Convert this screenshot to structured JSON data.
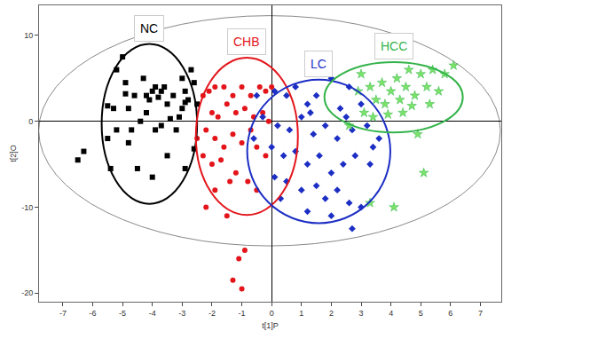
{
  "chart_data": {
    "type": "scatter",
    "x_label": "t[1]P",
    "y_label": "t[2]O",
    "xlim": [
      -7.8,
      7.7
    ],
    "ylim": [
      -21,
      13.5
    ],
    "xticks": [
      -7,
      -6,
      -5,
      -4,
      -3,
      -2,
      -1,
      0,
      1,
      2,
      3,
      4,
      5,
      6,
      7
    ],
    "yticks": [
      -20,
      -10,
      0,
      10
    ],
    "grid": false,
    "hotelling_ellipse": {
      "cx": -0.07,
      "cy": -1.1,
      "rx": 7.74,
      "ry": 13.4,
      "color": "#888888"
    },
    "series": [
      {
        "name": "NC",
        "color": "#000000",
        "marker": "square",
        "ellipse": {
          "cx": -4.1,
          "cy": -0.3,
          "rx": 1.6,
          "ry": 9.3
        },
        "x": [
          -6.3,
          -6.5,
          -5.5,
          -5.3,
          -5.2,
          -5.0,
          -4.9,
          -4.8,
          -4.7,
          -4.5,
          -4.3,
          -4.2,
          -4.1,
          -4.0,
          -3.9,
          -3.8,
          -3.7,
          -3.6,
          -3.5,
          -3.3,
          -3.2,
          -3.0,
          -2.9,
          -2.8,
          -2.7,
          -2.6,
          -2.5,
          -3.1,
          -4.4,
          -4.6,
          -5.4,
          -5.5,
          -4.0,
          -3.5,
          -2.9,
          -2.6,
          -3.9,
          -4.2,
          -4.9,
          -5.2,
          -3.4,
          -2.9,
          -3.7,
          -4.8,
          -3.0
        ],
        "y": [
          -3.5,
          -4.5,
          1.8,
          1.5,
          6,
          7.5,
          3.2,
          1.5,
          -1,
          -5.5,
          5,
          3,
          2.5,
          3.5,
          4,
          2.8,
          3.5,
          4,
          2,
          3,
          -1,
          5,
          3.5,
          2.5,
          6,
          4.5,
          2,
          0.5,
          0,
          3,
          -5.5,
          -2,
          -6.5,
          -4,
          -5.5,
          -3.2,
          -1,
          1,
          4.5,
          -1,
          0.3,
          2.2,
          -0.5,
          -2.5,
          1.5
        ]
      },
      {
        "name": "CHB",
        "color": "#e3151b",
        "marker": "circle",
        "ellipse": {
          "cx": -0.83,
          "cy": -1.75,
          "rx": 1.71,
          "ry": 9.15
        },
        "x": [
          -2.3,
          -2.1,
          -1.9,
          -1.6,
          -1.3,
          -1.0,
          -0.7,
          -0.4,
          -0.2,
          0.0,
          -2.0,
          -1.8,
          -1.5,
          -1.2,
          -0.9,
          -0.6,
          -0.3,
          -2.2,
          -1.9,
          -1.6,
          -1.3,
          -1.0,
          -0.7,
          -0.5,
          -2.3,
          -2.0,
          -1.7,
          -1.2,
          -0.8,
          -0.5,
          -1.9,
          -2.2,
          -1.5,
          -0.9,
          -1.1,
          -1.3,
          -1.0,
          -1.4,
          -2.5,
          -0.2,
          -0.1
        ],
        "y": [
          3,
          3.5,
          4,
          4,
          3,
          4,
          3,
          4,
          3.5,
          4,
          1,
          0.5,
          2,
          1,
          1.5,
          0.5,
          1,
          -1,
          -2,
          -3,
          -1.5,
          -2.5,
          -1,
          -3,
          -4,
          -5,
          -4.5,
          -6,
          -7,
          -8,
          -8,
          -10,
          -11,
          -15,
          -16,
          -18.5,
          -19.5,
          -7,
          -2,
          -4,
          0
        ]
      },
      {
        "name": "LC",
        "color": "#1c2ec4",
        "marker": "diamond",
        "ellipse": {
          "cx": 1.58,
          "cy": -3.5,
          "rx": 2.4,
          "ry": 8.35
        },
        "x": [
          -0.5,
          0.1,
          0.5,
          0.8,
          1.2,
          1.5,
          2.0,
          2.3,
          2.6,
          3.0,
          -0.3,
          0.2,
          0.6,
          1.0,
          1.4,
          1.8,
          2.2,
          2.7,
          3.2,
          3.6,
          0.0,
          0.4,
          0.8,
          1.2,
          1.6,
          2.0,
          2.4,
          2.8,
          3.3,
          0.1,
          0.5,
          1.0,
          1.5,
          1.8,
          2.2,
          2.6,
          3.0,
          1.2,
          2.0,
          2.7,
          0.3,
          3.4,
          1.3,
          -0.6,
          2.5
        ],
        "y": [
          3,
          3.5,
          3,
          4,
          2,
          3,
          5,
          1.5,
          4,
          2,
          0.5,
          -0.5,
          -1,
          0.5,
          -1.5,
          -0.5,
          -2,
          -1,
          -0.5,
          -2,
          -3,
          -4,
          -3.5,
          -5,
          -4,
          -6,
          -5,
          -4,
          -5,
          -6.5,
          -7,
          -8,
          -7.5,
          -9,
          -8,
          -9.5,
          -10,
          -10.5,
          -11,
          -12.5,
          -9,
          -3,
          1,
          -2,
          0.5
        ]
      },
      {
        "name": "HCC",
        "color": "#33b34a",
        "marker": "star",
        "ellipse": {
          "cx": 4.09,
          "cy": 2.8,
          "rx": 2.32,
          "ry": 4.1
        },
        "x": [
          2.9,
          3.3,
          3.5,
          3.7,
          3.8,
          4.0,
          4.2,
          4.3,
          4.5,
          4.6,
          4.8,
          5.0,
          5.2,
          5.4,
          5.6,
          5.8,
          6.1,
          3.1,
          3.4,
          3.9,
          4.4,
          4.9,
          5.1,
          4.1,
          3.3,
          2.6,
          3.0,
          4.7,
          5.3
        ],
        "y": [
          3.5,
          4,
          2.5,
          4.5,
          2,
          3.5,
          5,
          2.5,
          4,
          6,
          3,
          5.5,
          4,
          6,
          3.5,
          5.5,
          6.5,
          1,
          0.5,
          0.8,
          1,
          -1.5,
          -6,
          -10,
          -9.5,
          -0.5,
          5.5,
          1.8,
          2
        ]
      }
    ]
  }
}
